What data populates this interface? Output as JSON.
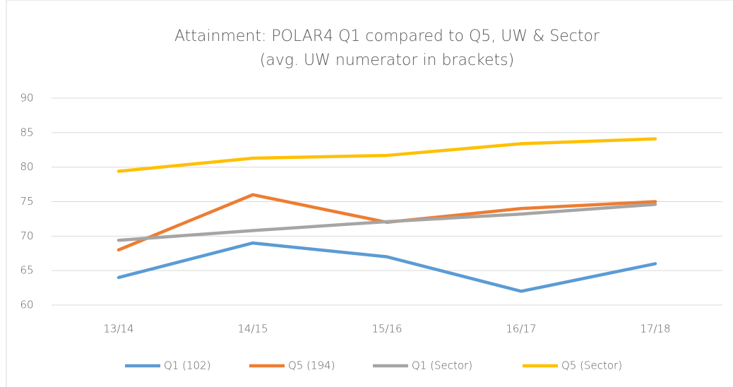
{
  "chart_data": {
    "type": "line",
    "title": "Attainment: POLAR4 Q1 compared to Q5, UW & Sector",
    "subtitle": "(avg. UW numerator in brackets)",
    "categories": [
      "13/14",
      "14/15",
      "15/16",
      "16/17",
      "17/18"
    ],
    "series": [
      {
        "name": "Q1 (102)",
        "color": "#5b9bd5",
        "values": [
          64,
          69,
          67,
          62,
          66
        ]
      },
      {
        "name": "Q5 (194)",
        "color": "#ed7d31",
        "values": [
          68,
          76,
          72,
          74,
          75
        ]
      },
      {
        "name": "Q1 (Sector)",
        "color": "#a5a5a5",
        "values": [
          69.4,
          70.8,
          72.1,
          73.2,
          74.6
        ]
      },
      {
        "name": "Q5 (Sector)",
        "color": "#ffc000",
        "values": [
          79.4,
          81.3,
          81.7,
          83.4,
          84.1
        ]
      }
    ],
    "ylim": [
      60,
      90
    ],
    "yticks": [
      60,
      65,
      70,
      75,
      80,
      85,
      90
    ],
    "grid": true,
    "legend": "bottom"
  }
}
